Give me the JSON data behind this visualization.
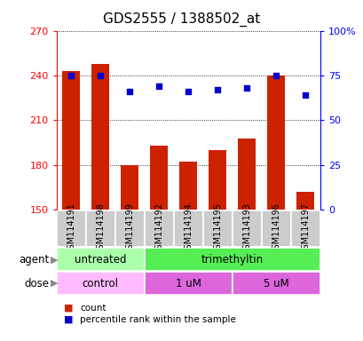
{
  "title": "GDS2555 / 1388502_at",
  "samples": [
    "GSM114191",
    "GSM114198",
    "GSM114199",
    "GSM114192",
    "GSM114194",
    "GSM114195",
    "GSM114193",
    "GSM114196",
    "GSM114197"
  ],
  "counts": [
    243,
    248,
    180,
    193,
    182,
    190,
    198,
    240,
    162
  ],
  "percentile_ranks": [
    75,
    75,
    66,
    69,
    66,
    67,
    68,
    75,
    64
  ],
  "ylim_left": [
    150,
    270
  ],
  "ylim_right": [
    0,
    100
  ],
  "yticks_left": [
    150,
    180,
    210,
    240,
    270
  ],
  "yticks_right": [
    0,
    25,
    50,
    75,
    100
  ],
  "bar_color": "#cc2200",
  "dot_color": "#0000cc",
  "agent_groups": [
    {
      "label": "untreated",
      "start": 0,
      "end": 3,
      "color": "#aaffaa"
    },
    {
      "label": "trimethyltin",
      "start": 3,
      "end": 9,
      "color": "#55ee55"
    }
  ],
  "dose_groups": [
    {
      "label": "control",
      "start": 0,
      "end": 3,
      "color": "#ffbbff"
    },
    {
      "label": "1 uM",
      "start": 3,
      "end": 6,
      "color": "#dd66dd"
    },
    {
      "label": "5 uM",
      "start": 6,
      "end": 9,
      "color": "#dd66dd"
    }
  ],
  "legend_count_label": "count",
  "legend_pct_label": "percentile rank within the sample",
  "title_fontsize": 11,
  "tick_label_fontsize": 7,
  "bar_width": 0.6,
  "sample_box_color": "#cccccc",
  "left_axis_color": "red",
  "right_axis_color": "blue"
}
